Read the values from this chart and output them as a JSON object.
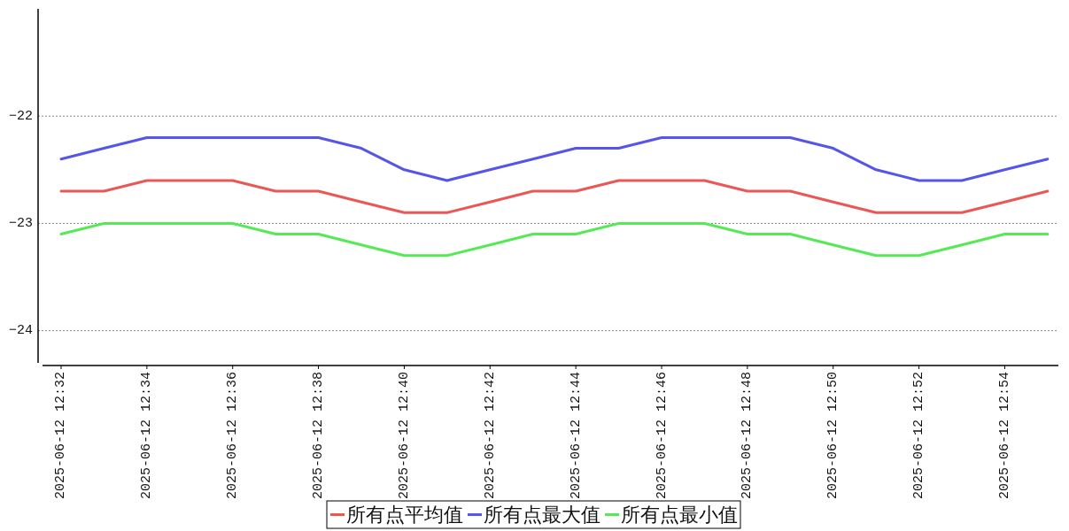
{
  "chart_data": {
    "type": "line",
    "x": [
      "2025-06-12T12:32",
      "2025-06-12T12:33",
      "2025-06-12T12:34",
      "2025-06-12T12:35",
      "2025-06-12T12:36",
      "2025-06-12T12:37",
      "2025-06-12T12:38",
      "2025-06-12T12:39",
      "2025-06-12T12:40",
      "2025-06-12T12:41",
      "2025-06-12T12:42",
      "2025-06-12T12:43",
      "2025-06-12T12:44",
      "2025-06-12T12:45",
      "2025-06-12T12:46",
      "2025-06-12T12:47",
      "2025-06-12T12:48",
      "2025-06-12T12:49",
      "2025-06-12T12:50",
      "2025-06-12T12:51",
      "2025-06-12T12:52",
      "2025-06-12T12:53",
      "2025-06-12T12:54",
      "2025-06-12T12:55"
    ],
    "series": [
      {
        "name": "所有点平均值",
        "color": "#ea5757",
        "values": [
          -22.7,
          -22.7,
          -22.6,
          -22.6,
          -22.6,
          -22.7,
          -22.7,
          -22.8,
          -22.9,
          -22.9,
          -22.8,
          -22.7,
          -22.7,
          -22.6,
          -22.6,
          -22.6,
          -22.7,
          -22.7,
          -22.8,
          -22.9,
          -22.9,
          -22.9,
          -22.8,
          -22.7
        ]
      },
      {
        "name": "所有点最大值",
        "color": "#5555e8",
        "values": [
          -22.4,
          -22.3,
          -22.2,
          -22.2,
          -22.2,
          -22.2,
          -22.2,
          -22.3,
          -22.5,
          -22.6,
          -22.5,
          -22.4,
          -22.3,
          -22.3,
          -22.2,
          -22.2,
          -22.2,
          -22.2,
          -22.3,
          -22.5,
          -22.6,
          -22.6,
          -22.5,
          -22.4
        ]
      },
      {
        "name": "所有点最小值",
        "color": "#55ea55",
        "values": [
          -23.1,
          -23.0,
          -23.0,
          -23.0,
          -23.0,
          -23.1,
          -23.1,
          -23.2,
          -23.3,
          -23.3,
          -23.2,
          -23.1,
          -23.1,
          -23.0,
          -23.0,
          -23.0,
          -23.1,
          -23.1,
          -23.2,
          -23.3,
          -23.3,
          -23.2,
          -23.1,
          -23.1
        ]
      }
    ],
    "xlim": [
      "2025-06-12T12:31:34",
      "2025-06-12T12:55:15"
    ],
    "xticks": [
      {
        "value": "2025-06-12T12:32",
        "label": "2025-06-12 12:32"
      },
      {
        "value": "2025-06-12T12:34",
        "label": "2025-06-12 12:34"
      },
      {
        "value": "2025-06-12T12:36",
        "label": "2025-06-12 12:36"
      },
      {
        "value": "2025-06-12T12:38",
        "label": "2025-06-12 12:38"
      },
      {
        "value": "2025-06-12T12:40",
        "label": "2025-06-12 12:40"
      },
      {
        "value": "2025-06-12T12:42",
        "label": "2025-06-12 12:42"
      },
      {
        "value": "2025-06-12T12:44",
        "label": "2025-06-12 12:44"
      },
      {
        "value": "2025-06-12T12:46",
        "label": "2025-06-12 12:46"
      },
      {
        "value": "2025-06-12T12:48",
        "label": "2025-06-12 12:48"
      },
      {
        "value": "2025-06-12T12:50",
        "label": "2025-06-12 12:50"
      },
      {
        "value": "2025-06-12T12:52",
        "label": "2025-06-12 12:52"
      },
      {
        "value": "2025-06-12T12:54",
        "label": "2025-06-12 12:54"
      }
    ],
    "ylim": [
      -24.3,
      -21.0
    ],
    "yticks": [
      -24,
      -23,
      -22
    ],
    "grid": "y",
    "legend": "bottom",
    "line_style": "solid"
  }
}
